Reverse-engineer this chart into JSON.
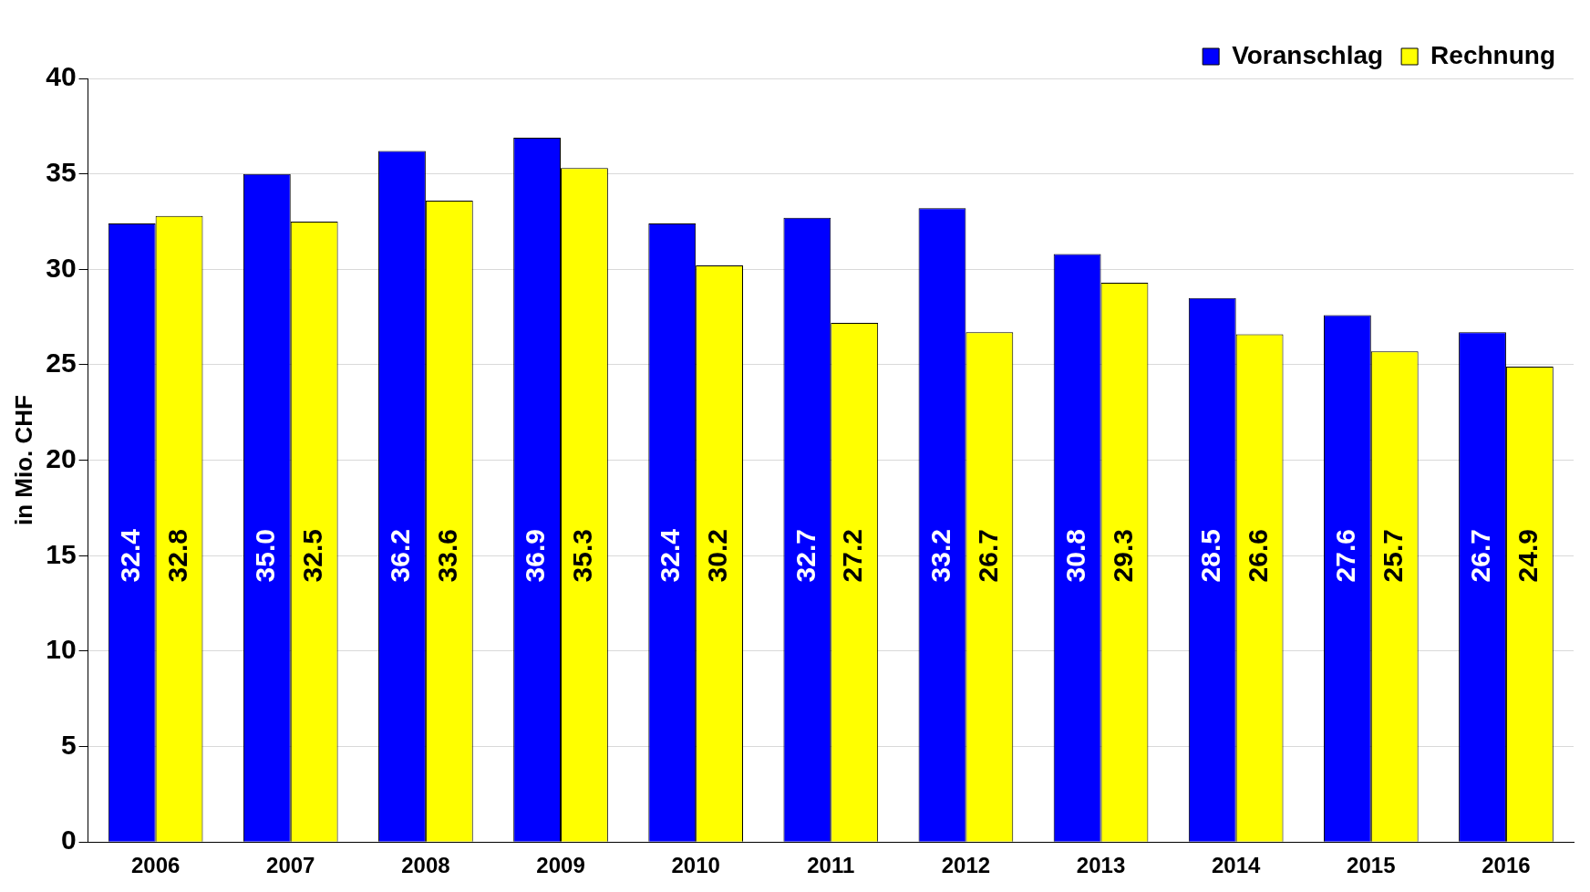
{
  "chart_data": {
    "type": "bar",
    "ylabel": "in Mio. CHF",
    "categories": [
      "2006",
      "2007",
      "2008",
      "2009",
      "2010",
      "2011",
      "2012",
      "2013",
      "2014",
      "2015",
      "2016"
    ],
    "series": [
      {
        "name": "Voranschlag",
        "color": "#0000ff",
        "values": [
          32.4,
          35.0,
          36.2,
          36.9,
          32.4,
          32.7,
          33.2,
          30.8,
          28.5,
          27.6,
          26.7
        ],
        "value_labels": [
          "32.4",
          "35.0",
          "36.2",
          "36.9",
          "32.4",
          "32.7",
          "33.2",
          "30.8",
          "28.5",
          "27.6",
          "26.7"
        ]
      },
      {
        "name": "Rechnung",
        "color": "#ffff00",
        "values": [
          32.8,
          32.5,
          33.6,
          35.3,
          30.2,
          27.2,
          26.7,
          29.3,
          26.6,
          25.7,
          24.9
        ],
        "value_labels": [
          "32.8",
          "32.5",
          "33.6",
          "35.3",
          "30.2",
          "27.2",
          "26.7",
          "29.3",
          "26.6",
          "25.7",
          "24.9"
        ]
      }
    ],
    "ylim": [
      0,
      40
    ],
    "yticks": [
      0,
      5,
      10,
      15,
      20,
      25,
      30,
      35,
      40
    ],
    "grid": "y",
    "legend": "top right"
  }
}
